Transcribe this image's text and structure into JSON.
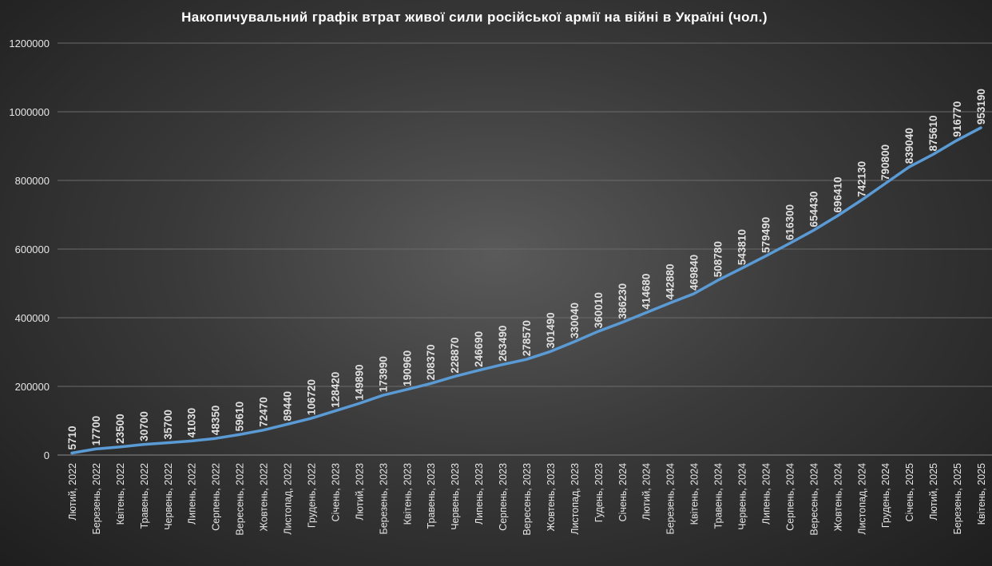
{
  "chart_data": {
    "type": "line",
    "title": "Накопичувальний графік втрат живої сили російської армії на війні в Україні (чол.)",
    "xlabel": "",
    "ylabel": "",
    "ylim": [
      0,
      1200000
    ],
    "yticks": [
      "0",
      "200000",
      "400000",
      "600000",
      "800000",
      "1000000",
      "1200000"
    ],
    "grid": true,
    "legend": "none",
    "line_color": "#5b9bd5",
    "categories": [
      "Лютий, 2022",
      "Березень, 2022",
      "Квітень, 2022",
      "Травень, 2022",
      "Червень, 2022",
      "Липень, 2022",
      "Серпень, 2022",
      "Вересень, 2022",
      "Жовтень, 2022",
      "Листопад, 2022",
      "Грудень, 2022",
      "Січень, 2023",
      "Лютий, 2023",
      "Березень, 2023",
      "Квітень, 2023",
      "Травень, 2023",
      "Червень, 2023",
      "Липень, 2023",
      "Серпень, 2023",
      "Вересень, 2023",
      "Жовтень, 2023",
      "Листопад, 2023",
      "Гудень, 2023",
      "Січень, 2024",
      "Лютий, 2024",
      "Березень, 2024",
      "Квітень, 2024",
      "Травень, 2024",
      "Червень, 2024",
      "Липень, 2024",
      "Серпень, 2024",
      "Вересень, 2024",
      "Жовтень, 2024",
      "Листопад, 2024",
      "Грудень, 2024",
      "Січень, 2025",
      "Лютий, 2025",
      "Березень, 2025",
      "Квітень, 2025"
    ],
    "values": [
      5710,
      17700,
      23500,
      30700,
      35700,
      41030,
      48350,
      59610,
      72470,
      89440,
      106720,
      128420,
      149890,
      173990,
      190960,
      208370,
      228870,
      246690,
      263490,
      278570,
      301490,
      330040,
      360010,
      386230,
      414680,
      442880,
      469840,
      508780,
      543810,
      579490,
      616300,
      654430,
      696410,
      742130,
      790800,
      839040,
      875610,
      916770,
      953190
    ]
  }
}
